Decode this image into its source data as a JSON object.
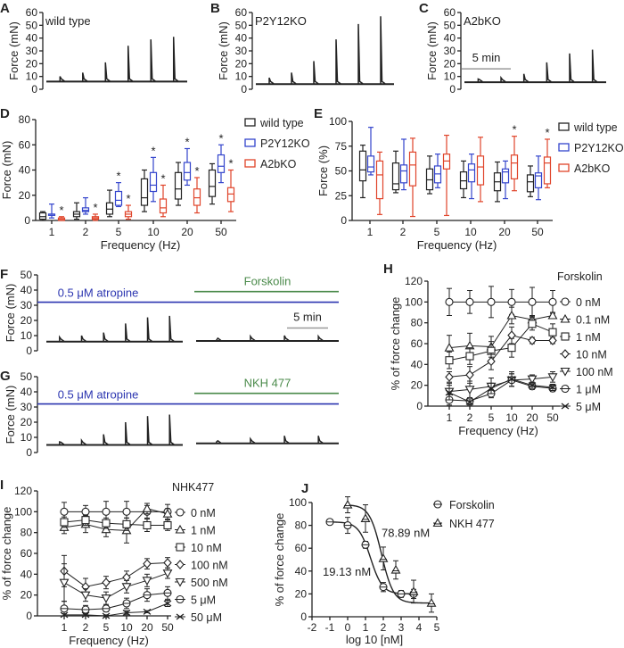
{
  "colors": {
    "wild_type": "#222222",
    "P2Y12KO": "#3344cc",
    "A2bKO": "#e0442a",
    "atropine": "#2b35b0",
    "drug": "#4a8a4a",
    "scalebar": "#999999"
  },
  "chart_data": [
    {
      "panel": "A",
      "type": "line",
      "label": "wild type",
      "ylabel": "Force (mN)",
      "ylim": [
        0,
        60
      ],
      "yticks": [
        0,
        10,
        20,
        30,
        40,
        50,
        60
      ],
      "baseline": 6,
      "peaks": [
        10,
        13,
        21,
        34,
        39,
        41
      ]
    },
    {
      "panel": "B",
      "type": "line",
      "label": "P2Y12KO",
      "ylabel": "Force (mN)",
      "ylim": [
        0,
        60
      ],
      "yticks": [
        0,
        10,
        20,
        30,
        40,
        50,
        60
      ],
      "baseline": 4,
      "peaks": [
        9,
        13,
        22,
        39,
        51,
        57
      ]
    },
    {
      "panel": "C",
      "type": "line",
      "label": "A2bKO",
      "ylabel": "Force (mN)",
      "ylim": [
        0,
        60
      ],
      "yticks": [
        0,
        10,
        20,
        30,
        40,
        50,
        60
      ],
      "baseline": 5.5,
      "peaks": [
        8,
        9,
        12,
        21,
        28,
        31
      ],
      "scalebar": {
        "label": "5 min",
        "level": 16
      }
    },
    {
      "panel": "D",
      "type": "box",
      "ylabel": "Force (mN)",
      "xlabel": "Frequency (Hz)",
      "ylim": [
        0,
        80
      ],
      "yticks": [
        0,
        20,
        40,
        60,
        80
      ],
      "categories": [
        "1",
        "2",
        "5",
        "10",
        "20",
        "50"
      ],
      "sig_marker": "*",
      "legend": "right",
      "series": [
        {
          "name": "wild type",
          "color": "#222222",
          "boxes": [
            [
              0,
              1,
              3,
              6,
              7
            ],
            [
              1,
              3,
              5,
              7,
              14
            ],
            [
              3,
              5,
              9,
              14,
              24
            ],
            [
              7,
              12,
              18,
              33,
              40
            ],
            [
              12,
              17,
              25,
              38,
              46
            ],
            [
              13,
              19,
              27,
              40,
              45
            ]
          ],
          "sig": []
        },
        {
          "name": "P2Y12KO",
          "color": "#3344cc",
          "boxes": [
            [
              2,
              4,
              5,
              5,
              13
            ],
            [
              5,
              7,
              8,
              10,
              18
            ],
            [
              11,
              12,
              16,
              23,
              30
            ],
            [
              15,
              23,
              28,
              38,
              50
            ],
            [
              28,
              32,
              38,
              46,
              57
            ],
            [
              30,
              38,
              43,
              52,
              60
            ]
          ],
          "sig": [
            2,
            3,
            4,
            5
          ]
        },
        {
          "name": "A2bKO",
          "color": "#e0442a",
          "boxes": [
            [
              0,
              0,
              1,
              2,
              3
            ],
            [
              0,
              1,
              2,
              3,
              5
            ],
            [
              1,
              3,
              5,
              7,
              12
            ],
            [
              3,
              6,
              10,
              17,
              28
            ],
            [
              6,
              12,
              18,
              25,
              34
            ],
            [
              7,
              15,
              21,
              26,
              40
            ]
          ],
          "sig": [
            0,
            1,
            2,
            3,
            4,
            5
          ]
        }
      ]
    },
    {
      "panel": "E",
      "type": "box",
      "ylabel": "Force (%)",
      "xlabel": "Frequency (Hz)",
      "ylim": [
        0,
        100
      ],
      "yticks": [
        0,
        25,
        50,
        75,
        100
      ],
      "categories": [
        "1",
        "2",
        "5",
        "10",
        "20",
        "50"
      ],
      "sig_marker": "*",
      "legend": "right",
      "series": [
        {
          "name": "wild type",
          "color": "#222222",
          "boxes": [
            [
              23,
              40,
              51,
              70,
              76
            ],
            [
              28,
              31,
              37,
              58,
              70
            ],
            [
              27,
              31,
              41,
              52,
              65
            ],
            [
              23,
              32,
              40,
              49,
              60
            ],
            [
              19,
              30,
              39,
              48,
              59
            ],
            [
              24,
              29,
              39,
              46,
              55
            ]
          ],
          "sig": []
        },
        {
          "name": "P2Y12KO",
          "color": "#3344cc",
          "boxes": [
            [
              46,
              49,
              54,
              65,
              94
            ],
            [
              31,
              38,
              50,
              56,
              82
            ],
            [
              33,
              38,
              47,
              55,
              67
            ],
            [
              22,
              39,
              51,
              57,
              67
            ],
            [
              22,
              38,
              49,
              52,
              60
            ],
            [
              21,
              33,
              45,
              48,
              65
            ]
          ],
          "sig": []
        },
        {
          "name": "A2bKO",
          "color": "#e0442a",
          "boxes": [
            [
              6,
              22,
              46,
              60,
              69
            ],
            [
              4,
              35,
              56,
              69,
              83
            ],
            [
              5,
              52,
              60,
              67,
              86
            ],
            [
              19,
              36,
              54,
              65,
              84
            ],
            [
              30,
              42,
              58,
              66,
              85
            ],
            [
              33,
              37,
              58,
              64,
              82
            ]
          ],
          "sig": [
            4,
            5
          ]
        }
      ]
    },
    {
      "panel": "F",
      "type": "line",
      "ylabel": "Force (mN)",
      "ylim": [
        0,
        50
      ],
      "yticks": [
        0,
        10,
        20,
        30,
        40,
        50
      ],
      "before": {
        "baseline": 6,
        "peaks": [
          9,
          10,
          12,
          18,
          22,
          23
        ]
      },
      "after": {
        "baseline": 6.5,
        "peaks": [
          7,
          9.5,
          10,
          9.5
        ]
      },
      "atropine": {
        "label": "0.5 μM atropine",
        "level": 32
      },
      "drug": {
        "label": "Forskolin",
        "level": 39
      },
      "scalebar": {
        "label": "5 min",
        "level": 15
      }
    },
    {
      "panel": "G",
      "type": "line",
      "ylabel": "Force (mN)",
      "ylim": [
        0,
        50
      ],
      "yticks": [
        0,
        10,
        20,
        30,
        40,
        50
      ],
      "before": {
        "baseline": 5,
        "peaks": [
          7,
          8,
          12,
          20,
          24,
          25
        ]
      },
      "after": {
        "baseline": 6,
        "peaks": [
          7,
          9,
          11,
          11
        ]
      },
      "atropine": {
        "label": "0.5 μM atropine",
        "level": 32
      },
      "drug": {
        "label": "NKH 477",
        "level": 39
      }
    },
    {
      "panel": "H",
      "type": "line",
      "ylabel": "% of force change",
      "xlabel": "Frequency (Hz)",
      "ylim": [
        0,
        120
      ],
      "yticks": [
        0,
        20,
        40,
        60,
        80,
        100,
        120
      ],
      "categories": [
        "1",
        "2",
        "5",
        "10",
        "20",
        "50"
      ],
      "legend_title": "Forskolin",
      "legend": "right",
      "series": [
        {
          "name": "0 nM",
          "marker": "circle",
          "values": [
            100,
            100,
            100,
            100,
            100,
            100
          ],
          "err": [
            13,
            11,
            15,
            12,
            14,
            11
          ]
        },
        {
          "name": "0.1 nM",
          "marker": "triangle",
          "values": [
            56,
            58,
            57,
            87,
            83,
            87
          ],
          "err": [
            12,
            12,
            10,
            8,
            4,
            3
          ]
        },
        {
          "name": "1 nM",
          "marker": "square",
          "values": [
            44,
            48,
            53,
            56,
            79,
            71
          ],
          "err": [
            8,
            8,
            9,
            9,
            6,
            8
          ]
        },
        {
          "name": "10 nM",
          "marker": "diamond",
          "values": [
            28,
            30,
            43,
            68,
            63,
            63
          ],
          "err": [
            5,
            8,
            8,
            8,
            3,
            3
          ]
        },
        {
          "name": "100 nM",
          "marker": "triangle-down",
          "values": [
            14,
            16,
            19,
            25,
            26,
            28
          ],
          "err": [
            8,
            8,
            8,
            6,
            4,
            5
          ]
        },
        {
          "name": "1 μM",
          "marker": "circle-bar",
          "values": [
            6,
            5,
            12,
            25,
            19,
            17
          ],
          "err": [
            5,
            3,
            4,
            6,
            3,
            3
          ]
        },
        {
          "name": "5 μM",
          "marker": "x",
          "values": [
            13,
            4,
            17,
            26,
            20,
            18
          ],
          "err": [
            7,
            3,
            5,
            7,
            3,
            3
          ]
        }
      ]
    },
    {
      "panel": "I",
      "type": "line",
      "ylabel": "% of force change",
      "xlabel": "Frequency (Hz)",
      "ylim": [
        0,
        120
      ],
      "yticks": [
        0,
        20,
        40,
        60,
        80,
        100,
        120
      ],
      "categories": [
        "1",
        "2",
        "5",
        "10",
        "20",
        "50"
      ],
      "legend_title": "NHK477",
      "legend": "right",
      "series": [
        {
          "name": "0 nM",
          "marker": "circle",
          "values": [
            100,
            100,
            100,
            100,
            100,
            100
          ],
          "err": [
            9,
            6,
            10,
            10,
            6,
            7
          ]
        },
        {
          "name": "1 nM",
          "marker": "triangle",
          "values": [
            85,
            88,
            83,
            82,
            103,
            98
          ],
          "err": [
            6,
            8,
            7,
            12,
            5,
            5
          ]
        },
        {
          "name": "10 nM",
          "marker": "square",
          "values": [
            90,
            92,
            89,
            88,
            87,
            87
          ],
          "err": [
            5,
            5,
            5,
            6,
            6,
            5
          ]
        },
        {
          "name": "100 nM",
          "marker": "diamond",
          "values": [
            43,
            28,
            32,
            37,
            50,
            51
          ],
          "err": [
            15,
            8,
            6,
            6,
            5,
            5
          ]
        },
        {
          "name": "500 nM",
          "marker": "triangle-down",
          "values": [
            32,
            20,
            17,
            28,
            34,
            41
          ],
          "err": [
            18,
            6,
            6,
            6,
            6,
            5
          ]
        },
        {
          "name": "5 μM",
          "marker": "circle-bar",
          "values": [
            7,
            6,
            7,
            12,
            20,
            22
          ],
          "err": [
            7,
            4,
            3,
            5,
            6,
            6
          ]
        },
        {
          "name": "50 μM",
          "marker": "x",
          "values": [
            1,
            1,
            0,
            3,
            4,
            12
          ],
          "err": [
            1,
            1,
            1,
            2,
            1,
            3
          ]
        }
      ]
    },
    {
      "panel": "J",
      "type": "scatter",
      "ylabel": "% of force change",
      "xlabel": "log 10 [nM]",
      "xlim": [
        -2,
        5
      ],
      "ylim": [
        0,
        100
      ],
      "xticks": [
        -2,
        -1,
        0,
        1,
        2,
        3,
        4,
        5
      ],
      "yticks": [
        0,
        20,
        40,
        60,
        80,
        100
      ],
      "legend": "top-right",
      "series": [
        {
          "name": "Forskolin",
          "marker": "circle-bar",
          "x": [
            -1,
            0,
            1,
            2,
            3,
            3.7
          ],
          "y": [
            83,
            80,
            63,
            26,
            20,
            20
          ],
          "err": [
            0,
            7,
            3,
            4,
            3,
            4
          ],
          "ic50_label": "19.13 nM",
          "ic50": 19.13
        },
        {
          "name": "NKH 477",
          "marker": "triangle-bar",
          "x": [
            0,
            1,
            2,
            2.7,
            3.7,
            4.7
          ],
          "y": [
            98,
            86,
            51,
            41,
            22,
            12
          ],
          "err": [
            7,
            12,
            10,
            8,
            10,
            8
          ],
          "ic50_label": "78.89 nM",
          "ic50": 78.89
        }
      ]
    }
  ]
}
